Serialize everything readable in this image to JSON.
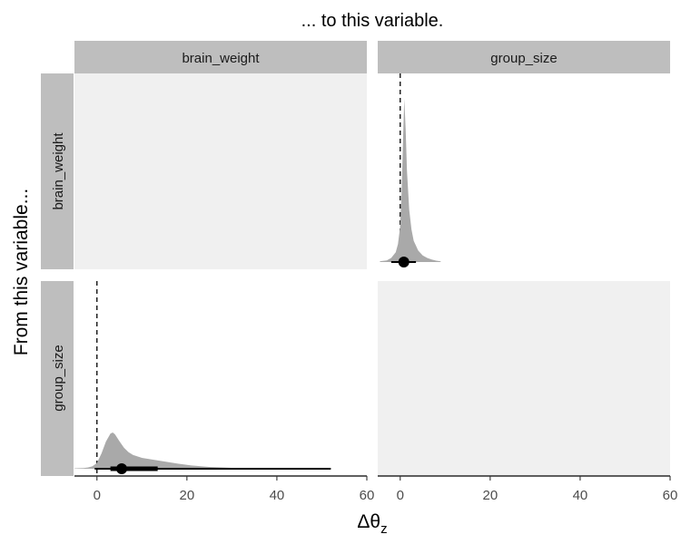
{
  "chart_data": {
    "type": "density-matrix",
    "title": "... to this variable.",
    "ylabel": "From this variable...",
    "xlabel_main": "Δθ",
    "xlabel_sub": "z",
    "columns": [
      "brain_weight",
      "group_size"
    ],
    "rows": [
      "brain_weight",
      "group_size"
    ],
    "xlim": [
      -5,
      60
    ],
    "xticks": [
      0,
      20,
      40,
      60
    ],
    "panels": [
      {
        "row": "brain_weight",
        "col": "group_size",
        "reference_line": 0,
        "point": 0.8,
        "interval_outer": [
          -2,
          3.5
        ],
        "interval_inner": [
          0,
          1.8
        ],
        "density": [
          [
            -4.5,
            0.005
          ],
          [
            -3,
            0.01
          ],
          [
            -2,
            0.025
          ],
          [
            -1,
            0.06
          ],
          [
            -0.5,
            0.11
          ],
          [
            0,
            0.22
          ],
          [
            0.3,
            0.42
          ],
          [
            0.6,
            0.72
          ],
          [
            0.9,
            1.0
          ],
          [
            1.2,
            0.82
          ],
          [
            1.5,
            0.56
          ],
          [
            2,
            0.32
          ],
          [
            2.5,
            0.2
          ],
          [
            3,
            0.13
          ],
          [
            4,
            0.07
          ],
          [
            5,
            0.04
          ],
          [
            6,
            0.025
          ],
          [
            7,
            0.015
          ],
          [
            8,
            0.008
          ],
          [
            9,
            0.004
          ]
        ]
      },
      {
        "row": "group_size",
        "col": "brain_weight",
        "reference_line": 0,
        "point": 5.5,
        "interval_outer": [
          -0.5,
          52
        ],
        "interval_inner": [
          3,
          13.5
        ],
        "density": [
          [
            -5,
            0.01
          ],
          [
            -4,
            0.015
          ],
          [
            -3,
            0.02
          ],
          [
            -2,
            0.035
          ],
          [
            -1,
            0.07
          ],
          [
            0,
            0.16
          ],
          [
            1,
            0.42
          ],
          [
            2,
            0.75
          ],
          [
            3,
            0.97
          ],
          [
            3.5,
            1.0
          ],
          [
            4,
            0.95
          ],
          [
            5,
            0.76
          ],
          [
            6,
            0.58
          ],
          [
            7,
            0.46
          ],
          [
            8,
            0.38
          ],
          [
            10,
            0.3
          ],
          [
            12,
            0.26
          ],
          [
            15,
            0.2
          ],
          [
            18,
            0.14
          ],
          [
            21,
            0.09
          ],
          [
            25,
            0.05
          ],
          [
            30,
            0.025
          ],
          [
            35,
            0.012
          ],
          [
            40,
            0.006
          ],
          [
            45,
            0.003
          ],
          [
            50,
            0.001
          ],
          [
            55,
            0.0005
          ]
        ]
      }
    ],
    "colors": {
      "density_fill": "#a9a9a9",
      "strip_fill": "#bebebe",
      "empty_panel": "#f0f0f0",
      "interval": "#000000"
    }
  }
}
